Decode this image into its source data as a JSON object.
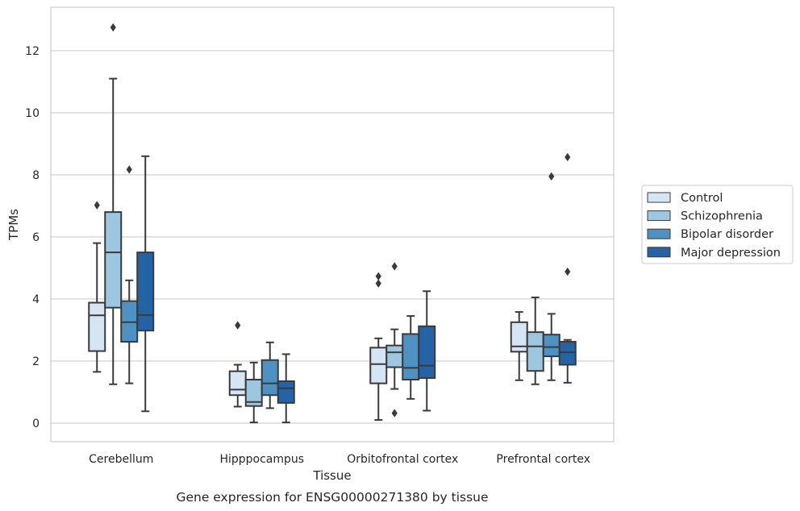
{
  "caption": "Gene expression for ENSG00000271380 by tissue",
  "colors": {
    "Control": "#d6e5f3",
    "Schizophrenia": "#9dc7e0",
    "Bipolar disorder": "#4d92c3",
    "Major depression": "#2463a5",
    "line": "#3a3a3a",
    "grid": "#cccccc",
    "frame": "#cccccc"
  },
  "chart_data": {
    "type": "box",
    "xlabel": "Tissue",
    "ylabel": "TPMs",
    "ylim": [
      -0.6,
      13.4
    ],
    "yticks": [
      0,
      2,
      4,
      6,
      8,
      10,
      12
    ],
    "grid": "horizontal",
    "legend_position": "right",
    "categories": [
      "Cerebellum",
      "Hipppocampus",
      "Orbitofrontal cortex",
      "Prefrontal cortex"
    ],
    "series": [
      {
        "name": "Control",
        "boxes": [
          {
            "whislo": 1.65,
            "q1": 2.32,
            "med": 3.47,
            "q3": 3.88,
            "whishi": 5.8,
            "fliers": [
              7.02
            ]
          },
          {
            "whislo": 0.53,
            "q1": 0.9,
            "med": 1.08,
            "q3": 1.67,
            "whishi": 1.88,
            "fliers": [
              3.15
            ]
          },
          {
            "whislo": 0.1,
            "q1": 1.28,
            "med": 1.9,
            "q3": 2.43,
            "whishi": 2.73,
            "fliers": [
              4.5,
              4.73
            ]
          },
          {
            "whislo": 1.38,
            "q1": 2.3,
            "med": 2.47,
            "q3": 3.25,
            "whishi": 3.58,
            "fliers": []
          }
        ]
      },
      {
        "name": "Schizophrenia",
        "boxes": [
          {
            "whislo": 1.25,
            "q1": 3.72,
            "med": 5.5,
            "q3": 6.8,
            "whishi": 11.1,
            "fliers": [
              12.75
            ]
          },
          {
            "whislo": 0.02,
            "q1": 0.55,
            "med": 0.68,
            "q3": 1.4,
            "whishi": 1.95,
            "fliers": []
          },
          {
            "whislo": 1.1,
            "q1": 1.8,
            "med": 2.28,
            "q3": 2.5,
            "whishi": 3.02,
            "fliers": [
              0.32,
              5.05
            ]
          },
          {
            "whislo": 1.25,
            "q1": 1.68,
            "med": 2.47,
            "q3": 2.93,
            "whishi": 4.05,
            "fliers": []
          }
        ]
      },
      {
        "name": "Bipolar disorder",
        "boxes": [
          {
            "whislo": 1.28,
            "q1": 2.62,
            "med": 3.25,
            "q3": 3.93,
            "whishi": 4.6,
            "fliers": [
              8.17
            ]
          },
          {
            "whislo": 0.48,
            "q1": 0.9,
            "med": 1.28,
            "q3": 2.03,
            "whishi": 2.6,
            "fliers": []
          },
          {
            "whislo": 0.78,
            "q1": 1.4,
            "med": 1.78,
            "q3": 2.87,
            "whishi": 3.45,
            "fliers": []
          },
          {
            "whislo": 1.38,
            "q1": 2.15,
            "med": 2.45,
            "q3": 2.85,
            "whishi": 3.52,
            "fliers": [
              7.95
            ]
          }
        ]
      },
      {
        "name": "Major depression",
        "boxes": [
          {
            "whislo": 0.38,
            "q1": 2.98,
            "med": 3.48,
            "q3": 5.5,
            "whishi": 8.6,
            "fliers": []
          },
          {
            "whislo": 0.02,
            "q1": 0.65,
            "med": 1.12,
            "q3": 1.35,
            "whishi": 2.22,
            "fliers": []
          },
          {
            "whislo": 0.4,
            "q1": 1.45,
            "med": 1.85,
            "q3": 3.12,
            "whishi": 4.25,
            "fliers": []
          },
          {
            "whislo": 1.3,
            "q1": 1.88,
            "med": 2.28,
            "q3": 2.62,
            "whishi": 2.68,
            "fliers": [
              4.88,
              8.57
            ]
          }
        ]
      }
    ]
  }
}
